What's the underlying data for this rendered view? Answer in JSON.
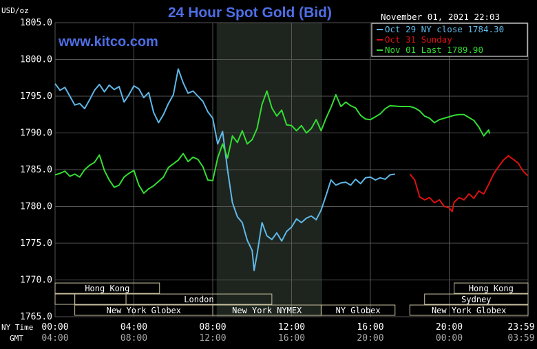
{
  "chart_data": {
    "type": "line",
    "title": "24 Hour Spot Gold (Bid)",
    "watermark": "www.kitco.com",
    "timestamp": "November 01, 2021 22:03",
    "ylabel": "USD/oz",
    "ylim": [
      1765.0,
      1805.0
    ],
    "y_ticks": [
      "1805.0",
      "1800.0",
      "1795.0",
      "1790.0",
      "1785.0",
      "1780.0",
      "1775.0",
      "1770.0",
      "1765.0"
    ],
    "x_ticks_ny": [
      "00:00",
      "04:00",
      "08:00",
      "12:00",
      "16:00",
      "20:00",
      "23:59"
    ],
    "x_ticks_gmt": [
      "04:00",
      "08:00",
      "12:00",
      "16:00",
      "20:00",
      "00:00",
      "03:59"
    ],
    "x_row_labels": [
      "NY Time",
      "GMT"
    ],
    "grid": true,
    "legend_position": "top-right",
    "colors": {
      "oct29": "#5fb8e8",
      "oct31": "#dd1111",
      "nov01": "#33dd33",
      "title": "#4e6ee6",
      "grid": "#555555",
      "highlight": "#1e251e"
    },
    "series": [
      {
        "name": "Oct 29 NY close 1784.30",
        "key": "oct29",
        "points": [
          [
            0.0,
            1796.7
          ],
          [
            0.25,
            1795.8
          ],
          [
            0.5,
            1796.2
          ],
          [
            0.75,
            1795.0
          ],
          [
            1.0,
            1793.8
          ],
          [
            1.25,
            1794.0
          ],
          [
            1.5,
            1793.3
          ],
          [
            1.75,
            1794.5
          ],
          [
            2.0,
            1795.8
          ],
          [
            2.25,
            1796.6
          ],
          [
            2.5,
            1795.6
          ],
          [
            2.75,
            1796.5
          ],
          [
            3.0,
            1795.9
          ],
          [
            3.25,
            1796.3
          ],
          [
            3.5,
            1794.2
          ],
          [
            3.75,
            1795.2
          ],
          [
            4.0,
            1796.4
          ],
          [
            4.25,
            1796.0
          ],
          [
            4.5,
            1794.8
          ],
          [
            4.75,
            1795.5
          ],
          [
            5.0,
            1792.8
          ],
          [
            5.25,
            1791.4
          ],
          [
            5.5,
            1792.5
          ],
          [
            5.75,
            1794.0
          ],
          [
            6.0,
            1795.2
          ],
          [
            6.25,
            1798.7
          ],
          [
            6.5,
            1796.8
          ],
          [
            6.75,
            1795.4
          ],
          [
            7.0,
            1795.7
          ],
          [
            7.25,
            1795.0
          ],
          [
            7.5,
            1794.3
          ],
          [
            7.75,
            1792.9
          ],
          [
            8.0,
            1792.0
          ],
          [
            8.25,
            1788.5
          ],
          [
            8.5,
            1790.2
          ],
          [
            8.75,
            1785.0
          ],
          [
            9.0,
            1780.5
          ],
          [
            9.25,
            1778.6
          ],
          [
            9.5,
            1777.8
          ],
          [
            9.75,
            1775.4
          ],
          [
            10.0,
            1774.0
          ],
          [
            10.1,
            1771.3
          ],
          [
            10.25,
            1773.5
          ],
          [
            10.5,
            1777.8
          ],
          [
            10.75,
            1776.0
          ],
          [
            11.0,
            1775.5
          ],
          [
            11.25,
            1776.4
          ],
          [
            11.5,
            1775.3
          ],
          [
            11.75,
            1776.6
          ],
          [
            12.0,
            1777.2
          ],
          [
            12.25,
            1778.3
          ],
          [
            12.5,
            1777.8
          ],
          [
            12.75,
            1778.4
          ],
          [
            13.0,
            1778.7
          ],
          [
            13.25,
            1778.2
          ],
          [
            13.5,
            1779.5
          ],
          [
            13.75,
            1781.5
          ],
          [
            14.0,
            1783.6
          ],
          [
            14.25,
            1782.9
          ],
          [
            14.5,
            1783.2
          ],
          [
            14.75,
            1783.3
          ],
          [
            15.0,
            1782.9
          ],
          [
            15.25,
            1783.7
          ],
          [
            15.5,
            1783.1
          ],
          [
            15.75,
            1783.9
          ],
          [
            16.0,
            1784.0
          ],
          [
            16.25,
            1783.6
          ],
          [
            16.5,
            1783.9
          ],
          [
            16.75,
            1783.7
          ],
          [
            17.0,
            1784.3
          ],
          [
            17.25,
            1784.4
          ]
        ]
      },
      {
        "name": "Oct 31 Sunday",
        "key": "oct31",
        "points": [
          [
            18.0,
            1784.4
          ],
          [
            18.25,
            1783.6
          ],
          [
            18.5,
            1781.3
          ],
          [
            18.75,
            1780.9
          ],
          [
            19.0,
            1781.2
          ],
          [
            19.25,
            1780.5
          ],
          [
            19.5,
            1780.9
          ],
          [
            19.75,
            1780.0
          ],
          [
            20.0,
            1779.8
          ],
          [
            20.15,
            1779.3
          ],
          [
            20.25,
            1780.6
          ],
          [
            20.5,
            1781.2
          ],
          [
            20.75,
            1780.9
          ],
          [
            21.0,
            1781.7
          ],
          [
            21.25,
            1781.1
          ],
          [
            21.5,
            1782.1
          ],
          [
            21.75,
            1781.7
          ],
          [
            22.0,
            1783.0
          ],
          [
            22.25,
            1784.4
          ],
          [
            22.5,
            1785.4
          ],
          [
            22.75,
            1786.3
          ],
          [
            23.0,
            1786.9
          ],
          [
            23.25,
            1786.4
          ],
          [
            23.5,
            1785.9
          ],
          [
            23.75,
            1784.8
          ],
          [
            23.98,
            1784.2
          ]
        ]
      },
      {
        "name": "Nov 01 Last 1789.90",
        "key": "nov01",
        "points": [
          [
            0.0,
            1784.3
          ],
          [
            0.25,
            1784.5
          ],
          [
            0.5,
            1784.8
          ],
          [
            0.75,
            1784.1
          ],
          [
            1.0,
            1784.4
          ],
          [
            1.25,
            1784.0
          ],
          [
            1.5,
            1785.0
          ],
          [
            1.75,
            1785.6
          ],
          [
            2.0,
            1786.0
          ],
          [
            2.25,
            1787.0
          ],
          [
            2.5,
            1784.9
          ],
          [
            2.75,
            1783.6
          ],
          [
            3.0,
            1782.6
          ],
          [
            3.25,
            1782.9
          ],
          [
            3.5,
            1784.0
          ],
          [
            3.75,
            1784.5
          ],
          [
            4.0,
            1784.9
          ],
          [
            4.25,
            1782.9
          ],
          [
            4.5,
            1781.8
          ],
          [
            4.75,
            1782.4
          ],
          [
            5.0,
            1782.8
          ],
          [
            5.25,
            1783.4
          ],
          [
            5.5,
            1784.0
          ],
          [
            5.75,
            1785.3
          ],
          [
            6.0,
            1785.8
          ],
          [
            6.25,
            1786.3
          ],
          [
            6.5,
            1787.2
          ],
          [
            6.75,
            1786.1
          ],
          [
            7.0,
            1786.7
          ],
          [
            7.25,
            1786.4
          ],
          [
            7.5,
            1785.4
          ],
          [
            7.75,
            1783.6
          ],
          [
            8.0,
            1783.5
          ],
          [
            8.25,
            1786.6
          ],
          [
            8.5,
            1788.5
          ],
          [
            8.75,
            1786.6
          ],
          [
            9.0,
            1789.6
          ],
          [
            9.25,
            1788.7
          ],
          [
            9.5,
            1790.3
          ],
          [
            9.75,
            1788.5
          ],
          [
            10.0,
            1789.1
          ],
          [
            10.25,
            1790.6
          ],
          [
            10.5,
            1793.9
          ],
          [
            10.75,
            1795.7
          ],
          [
            11.0,
            1793.4
          ],
          [
            11.25,
            1792.3
          ],
          [
            11.5,
            1793.1
          ],
          [
            11.75,
            1791.1
          ],
          [
            12.0,
            1791.0
          ],
          [
            12.25,
            1790.3
          ],
          [
            12.5,
            1791.0
          ],
          [
            12.75,
            1790.0
          ],
          [
            13.0,
            1790.6
          ],
          [
            13.25,
            1791.8
          ],
          [
            13.5,
            1790.3
          ],
          [
            13.75,
            1792.0
          ],
          [
            14.0,
            1793.5
          ],
          [
            14.25,
            1795.2
          ],
          [
            14.5,
            1793.6
          ],
          [
            14.75,
            1794.2
          ],
          [
            15.0,
            1793.7
          ],
          [
            15.25,
            1793.4
          ],
          [
            15.5,
            1792.4
          ],
          [
            15.75,
            1791.9
          ],
          [
            16.0,
            1791.8
          ],
          [
            16.25,
            1792.2
          ],
          [
            16.5,
            1792.6
          ],
          [
            16.75,
            1793.3
          ],
          [
            17.0,
            1793.7
          ],
          [
            17.5,
            1793.6
          ],
          [
            18.0,
            1793.6
          ],
          [
            18.25,
            1793.4
          ],
          [
            18.5,
            1793.0
          ],
          [
            18.75,
            1792.3
          ],
          [
            19.0,
            1792.0
          ],
          [
            19.25,
            1791.4
          ],
          [
            19.5,
            1791.8
          ],
          [
            19.75,
            1792.0
          ],
          [
            20.0,
            1792.2
          ],
          [
            20.25,
            1792.4
          ],
          [
            20.5,
            1792.5
          ],
          [
            20.75,
            1792.5
          ],
          [
            21.0,
            1792.1
          ],
          [
            21.25,
            1791.7
          ],
          [
            21.5,
            1790.8
          ],
          [
            21.75,
            1789.6
          ],
          [
            22.0,
            1790.4
          ],
          [
            22.05,
            1789.9
          ]
        ]
      }
    ],
    "sessions": [
      {
        "label": "Hong Kong",
        "row": 0,
        "start": 0.0,
        "end": 5.3
      },
      {
        "label": "",
        "row": 1,
        "start": 0.0,
        "end": 1.0
      },
      {
        "label": "",
        "row": 1,
        "start": 1.0,
        "end": 3.6
      },
      {
        "label": "London",
        "row": 1,
        "start": 3.6,
        "end": 11.0
      },
      {
        "label": "New York Globex",
        "row": 2,
        "start": 1.0,
        "end": 8.0
      },
      {
        "label": "New York NYMEX",
        "row": 2,
        "start": 8.0,
        "end": 13.5
      },
      {
        "label": "NY Globex",
        "row": 2,
        "start": 13.5,
        "end": 17.25
      },
      {
        "label": "Hong Kong",
        "row": 0,
        "start": 20.25,
        "end": 24.0
      },
      {
        "label": "Sydney",
        "row": 1,
        "start": 18.75,
        "end": 24.0
      },
      {
        "label": "New York Globex",
        "row": 2,
        "start": 18.0,
        "end": 24.0
      }
    ],
    "highlight_range": [
      8.2,
      13.55
    ]
  }
}
